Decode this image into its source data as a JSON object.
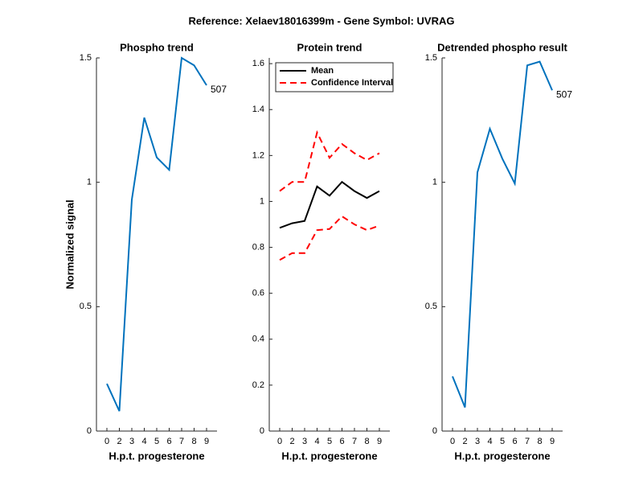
{
  "title": "Reference:  Xelaev18016399m - Gene Symbol:  UVRAG",
  "chart_data": [
    {
      "type": "line",
      "title": "Phospho trend",
      "xlabel": "H.p.t. progesterone",
      "ylabel": "Normalized signal",
      "categories": [
        "0",
        "2",
        "3",
        "4",
        "5",
        "6",
        "7",
        "8",
        "9"
      ],
      "series": [
        {
          "name": null,
          "color": "#0072bd",
          "values": [
            0.19,
            0.08,
            0.93,
            1.26,
            1.1,
            1.05,
            1.5,
            1.47,
            1.39
          ]
        }
      ],
      "annotation": "507",
      "ylim": [
        0,
        1.5
      ],
      "yticks": [
        0,
        0.5,
        1,
        1.5
      ]
    },
    {
      "type": "line",
      "title": "Protein trend",
      "xlabel": "H.p.t. progesterone",
      "categories": [
        "0",
        "2",
        "3",
        "4",
        "5",
        "6",
        "7",
        "8",
        "9"
      ],
      "series": [
        {
          "name": "Mean",
          "color": "#000000",
          "values": [
            0.885,
            0.905,
            0.915,
            1.065,
            1.025,
            1.085,
            1.045,
            1.015,
            1.045
          ]
        },
        {
          "name": "Confidence Interval",
          "color": "#ff0000",
          "dashed": true,
          "upper": [
            1.045,
            1.085,
            1.085,
            1.3,
            1.19,
            1.25,
            1.21,
            1.18,
            1.21
          ],
          "lower": [
            0.745,
            0.775,
            0.775,
            0.875,
            0.88,
            0.935,
            0.9,
            0.875,
            0.895
          ]
        }
      ],
      "legend": "northwest",
      "ylim": [
        0,
        1.625
      ],
      "yticks": [
        0,
        0.2,
        0.4,
        0.6,
        0.8,
        1,
        1.2,
        1.4,
        1.6
      ]
    },
    {
      "type": "line",
      "title": "Detrended phospho result",
      "xlabel": "H.p.t. progesterone",
      "categories": [
        "0",
        "2",
        "3",
        "4",
        "5",
        "6",
        "7",
        "8",
        "9"
      ],
      "series": [
        {
          "name": null,
          "color": "#0072bd",
          "values": [
            0.22,
            0.095,
            1.04,
            1.215,
            1.095,
            0.995,
            1.47,
            1.485,
            1.37
          ]
        }
      ],
      "annotation": "507",
      "ylim": [
        0,
        1.5
      ],
      "yticks": [
        0,
        0.5,
        1,
        1.5
      ]
    }
  ]
}
